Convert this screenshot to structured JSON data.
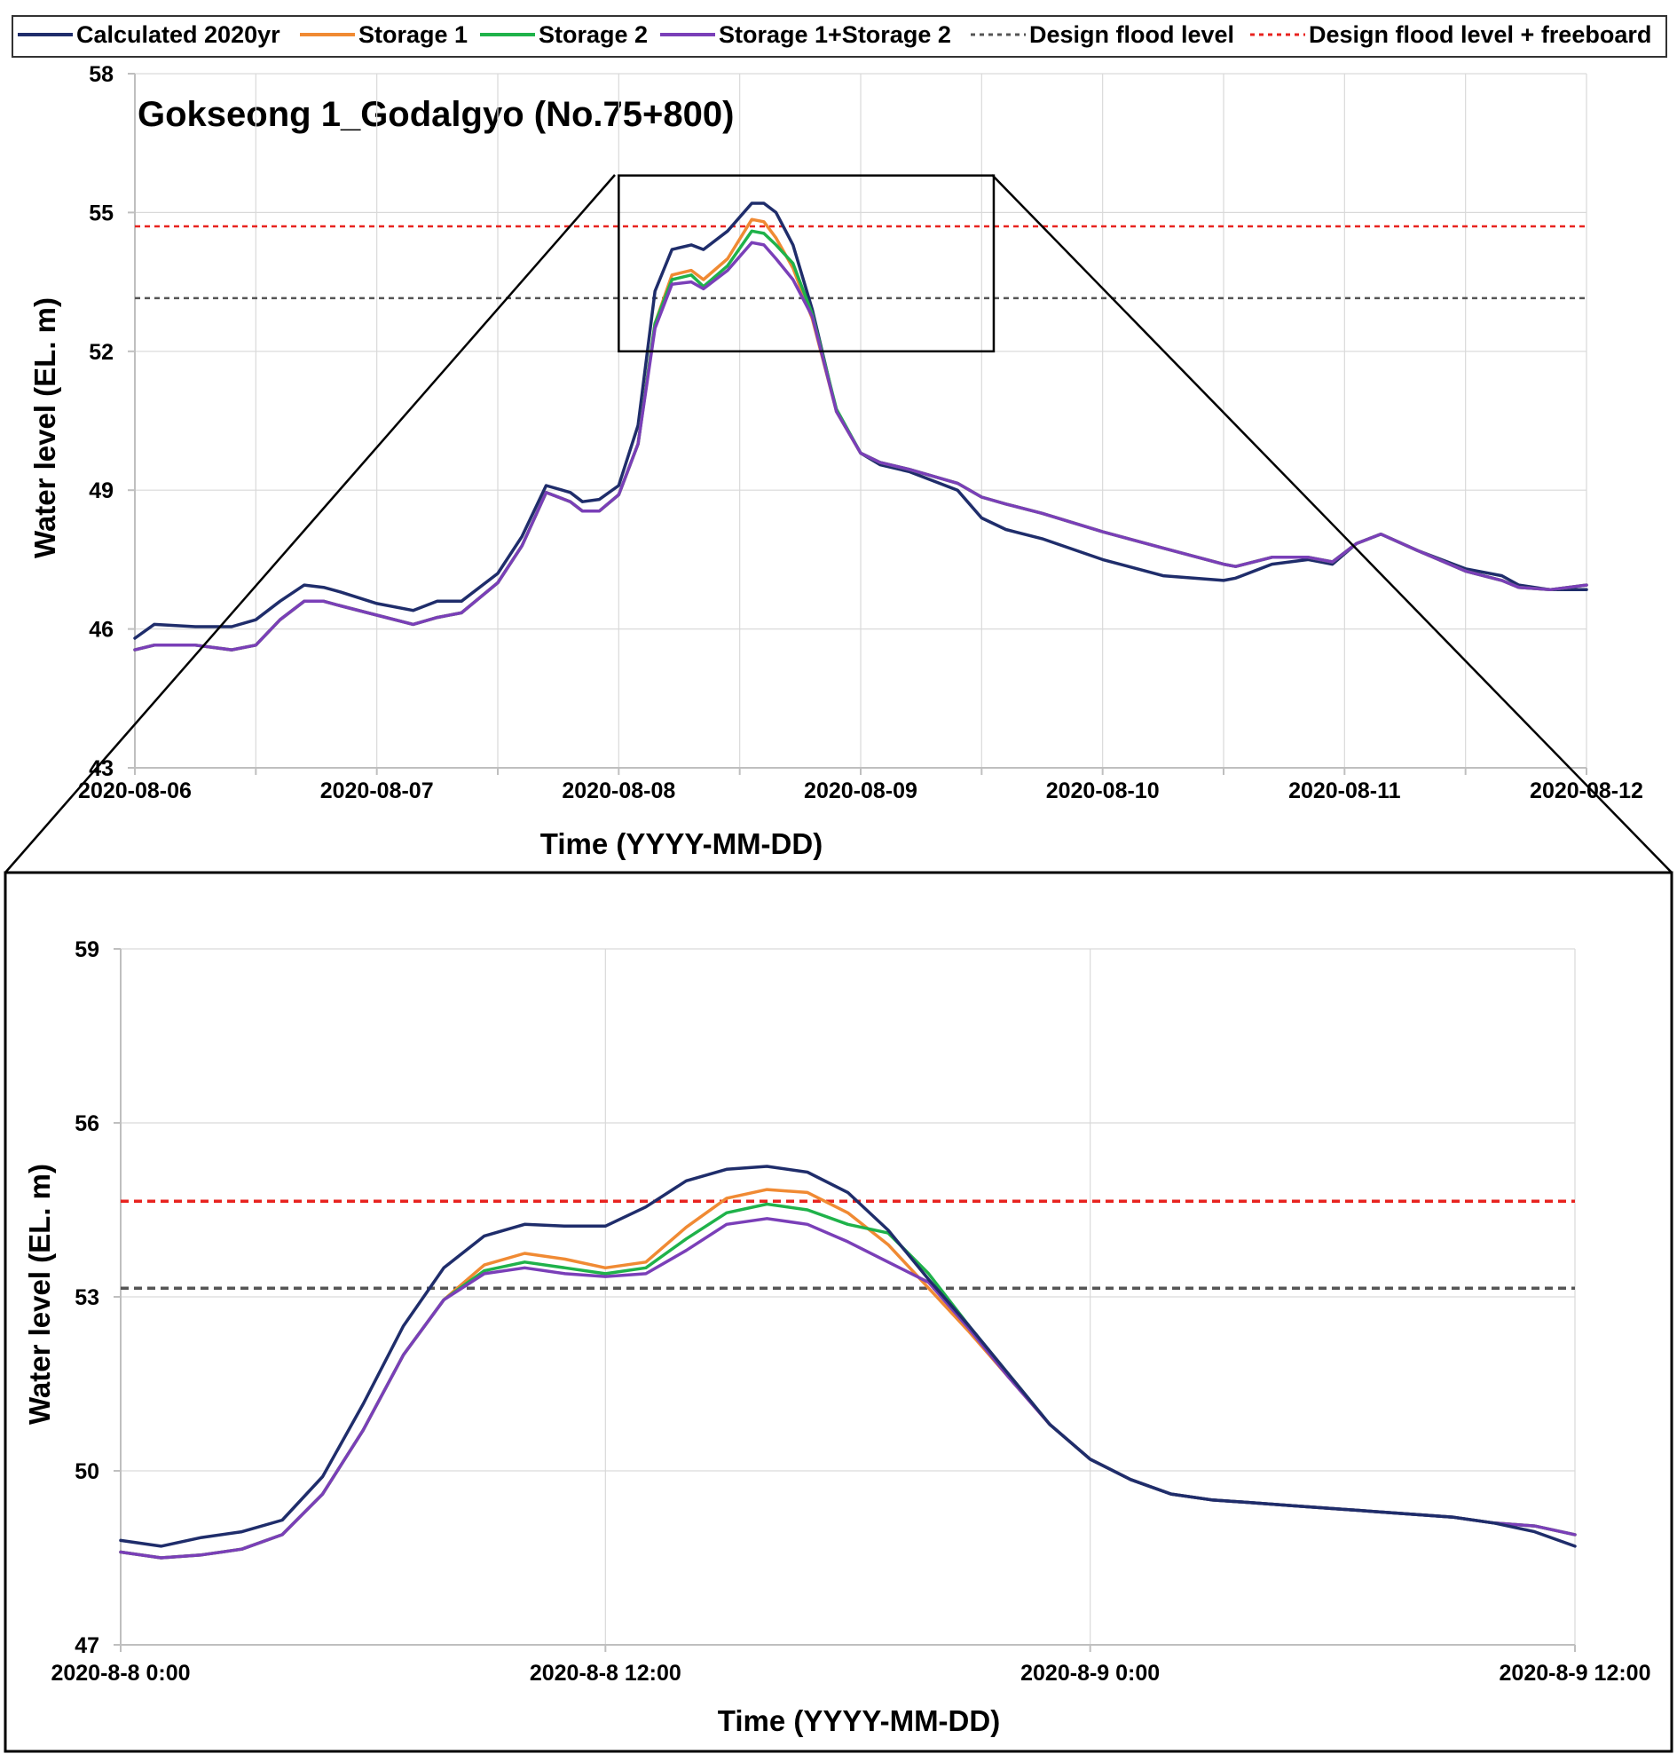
{
  "legend": [
    {
      "label": "Calculated 2020yr",
      "color": "#1f2d6b",
      "dashed": false
    },
    {
      "label": "Storage 1",
      "color": "#f08a33",
      "dashed": false
    },
    {
      "label": "Storage 2",
      "color": "#1fb24a",
      "dashed": false
    },
    {
      "label": "Storage 1+Storage 2",
      "color": "#7a3fb8",
      "dashed": false
    },
    {
      "label": "Design flood level",
      "color": "#555555",
      "dashed": true
    },
    {
      "label": "Design flood level + freeboard",
      "color": "#e8231f",
      "dashed": true
    }
  ],
  "chart_data": [
    {
      "type": "line",
      "title": "Gokseong 1_Godalgyo (No.75+800)",
      "xlabel": "Time (YYYY-MM-DD)",
      "ylabel": "Water level (EL. m)",
      "xlim": [
        0,
        6
      ],
      "ylim": [
        43,
        58
      ],
      "yticks": [
        43,
        46,
        49,
        52,
        55,
        58
      ],
      "x_ticks": [
        0,
        1,
        2,
        3,
        4,
        5,
        6
      ],
      "x_tick_labels": [
        "2020-08-06",
        "2020-08-07",
        "2020-08-08",
        "2020-08-09",
        "2020-08-10",
        "2020-08-11",
        "2020-08-12"
      ],
      "grid": true,
      "legend_position": "top",
      "reference_lines": [
        {
          "name": "Design flood level",
          "y": 53.15
        },
        {
          "name": "Design flood level + freeboard",
          "y": 54.7
        }
      ],
      "zoom_box": {
        "x": [
          2.0,
          3.55
        ],
        "y": [
          52.0,
          55.8
        ]
      },
      "series": [
        {
          "name": "Calculated 2020yr",
          "x": [
            0,
            0.08,
            0.25,
            0.4,
            0.5,
            0.6,
            0.7,
            0.78,
            0.85,
            1.0,
            1.15,
            1.25,
            1.35,
            1.5,
            1.6,
            1.7,
            1.8,
            1.85,
            1.92,
            2.0,
            2.08,
            2.15,
            2.22,
            2.3,
            2.35,
            2.45,
            2.55,
            2.6,
            2.65,
            2.72,
            2.8,
            2.9,
            3.0,
            3.08,
            3.2,
            3.4,
            3.5,
            3.6,
            3.75,
            4.0,
            4.25,
            4.5,
            4.55,
            4.7,
            4.85,
            4.95,
            5.05,
            5.15,
            5.3,
            5.5,
            5.65,
            5.72,
            5.85,
            6.0
          ],
          "values": [
            45.8,
            46.1,
            46.05,
            46.05,
            46.2,
            46.6,
            46.95,
            46.9,
            46.8,
            46.55,
            46.4,
            46.6,
            46.6,
            47.2,
            48.0,
            49.1,
            48.95,
            48.75,
            48.8,
            49.1,
            50.4,
            53.3,
            54.2,
            54.3,
            54.2,
            54.6,
            55.2,
            55.2,
            55.0,
            54.3,
            52.9,
            50.7,
            49.8,
            49.55,
            49.4,
            49.0,
            48.4,
            48.15,
            47.95,
            47.5,
            47.15,
            47.05,
            47.1,
            47.4,
            47.5,
            47.4,
            47.85,
            48.05,
            47.7,
            47.3,
            47.15,
            46.95,
            46.85,
            46.85
          ]
        },
        {
          "name": "Storage 1",
          "x": [
            0,
            0.08,
            0.25,
            0.4,
            0.5,
            0.6,
            0.7,
            0.78,
            0.85,
            1.0,
            1.15,
            1.25,
            1.35,
            1.5,
            1.6,
            1.7,
            1.8,
            1.85,
            1.92,
            2.0,
            2.08,
            2.15,
            2.22,
            2.3,
            2.35,
            2.45,
            2.55,
            2.6,
            2.65,
            2.72,
            2.8,
            2.9,
            3.0,
            3.08,
            3.2,
            3.4,
            3.5,
            3.6,
            3.75,
            4.0,
            4.25,
            4.5,
            4.55,
            4.7,
            4.85,
            4.95,
            5.05,
            5.15,
            5.3,
            5.5,
            5.65,
            5.72,
            5.85,
            6.0
          ],
          "values": [
            45.55,
            45.65,
            45.65,
            45.55,
            45.65,
            46.2,
            46.6,
            46.6,
            46.5,
            46.3,
            46.1,
            46.25,
            46.35,
            47.0,
            47.8,
            48.95,
            48.75,
            48.55,
            48.55,
            48.9,
            50.0,
            52.6,
            53.65,
            53.75,
            53.55,
            54.0,
            54.85,
            54.8,
            54.45,
            53.8,
            52.7,
            50.7,
            49.8,
            49.6,
            49.45,
            49.15,
            48.85,
            48.7,
            48.5,
            48.1,
            47.75,
            47.4,
            47.35,
            47.55,
            47.55,
            47.45,
            47.85,
            48.05,
            47.7,
            47.25,
            47.05,
            46.9,
            46.85,
            46.95
          ]
        },
        {
          "name": "Storage 2",
          "x": [
            0,
            0.08,
            0.25,
            0.4,
            0.5,
            0.6,
            0.7,
            0.78,
            0.85,
            1.0,
            1.15,
            1.25,
            1.35,
            1.5,
            1.6,
            1.7,
            1.8,
            1.85,
            1.92,
            2.0,
            2.08,
            2.15,
            2.22,
            2.3,
            2.35,
            2.45,
            2.55,
            2.6,
            2.65,
            2.72,
            2.8,
            2.9,
            3.0,
            3.08,
            3.2,
            3.4,
            3.5,
            3.6,
            3.75,
            4.0,
            4.25,
            4.5,
            4.55,
            4.7,
            4.85,
            4.95,
            5.05,
            5.15,
            5.3,
            5.5,
            5.65,
            5.72,
            5.85,
            6.0
          ],
          "values": [
            45.55,
            45.65,
            45.65,
            45.55,
            45.65,
            46.2,
            46.6,
            46.6,
            46.5,
            46.3,
            46.1,
            46.25,
            46.35,
            47.0,
            47.8,
            48.95,
            48.75,
            48.55,
            48.55,
            48.9,
            50.0,
            52.6,
            53.55,
            53.65,
            53.4,
            53.85,
            54.6,
            54.55,
            54.3,
            53.9,
            52.8,
            50.75,
            49.8,
            49.6,
            49.45,
            49.15,
            48.85,
            48.7,
            48.5,
            48.1,
            47.75,
            47.4,
            47.35,
            47.55,
            47.55,
            47.45,
            47.85,
            48.05,
            47.7,
            47.25,
            47.05,
            46.9,
            46.85,
            46.95
          ]
        },
        {
          "name": "Storage 1+Storage 2",
          "x": [
            0,
            0.08,
            0.25,
            0.4,
            0.5,
            0.6,
            0.7,
            0.78,
            0.85,
            1.0,
            1.15,
            1.25,
            1.35,
            1.5,
            1.6,
            1.7,
            1.8,
            1.85,
            1.92,
            2.0,
            2.08,
            2.15,
            2.22,
            2.3,
            2.35,
            2.45,
            2.55,
            2.6,
            2.65,
            2.72,
            2.8,
            2.9,
            3.0,
            3.08,
            3.2,
            3.4,
            3.5,
            3.6,
            3.75,
            4.0,
            4.25,
            4.5,
            4.55,
            4.7,
            4.85,
            4.95,
            5.05,
            5.15,
            5.3,
            5.5,
            5.65,
            5.72,
            5.85,
            6.0
          ],
          "values": [
            45.55,
            45.65,
            45.65,
            45.55,
            45.65,
            46.2,
            46.6,
            46.6,
            46.5,
            46.3,
            46.1,
            46.25,
            46.35,
            47.0,
            47.8,
            48.95,
            48.75,
            48.55,
            48.55,
            48.9,
            50.0,
            52.5,
            53.45,
            53.5,
            53.35,
            53.75,
            54.35,
            54.3,
            54.0,
            53.55,
            52.75,
            50.7,
            49.8,
            49.6,
            49.45,
            49.15,
            48.85,
            48.7,
            48.5,
            48.1,
            47.75,
            47.4,
            47.35,
            47.55,
            47.55,
            47.45,
            47.85,
            48.05,
            47.7,
            47.25,
            47.05,
            46.9,
            46.85,
            46.95
          ]
        }
      ]
    },
    {
      "type": "line",
      "title": "",
      "xlabel": "Time (YYYY-MM-DD)",
      "ylabel": "Water level (EL. m)",
      "xlim": [
        0,
        36
      ],
      "ylim": [
        47,
        59
      ],
      "yticks": [
        47,
        50,
        53,
        56,
        59
      ],
      "x_ticks": [
        0,
        12,
        24,
        36
      ],
      "x_tick_labels": [
        "2020-8-8 0:00",
        "2020-8-8 12:00",
        "2020-8-9 0:00",
        "2020-8-9 12:00"
      ],
      "grid": true,
      "reference_lines": [
        {
          "name": "Design flood level",
          "y": 53.15
        },
        {
          "name": "Design flood level + freeboard",
          "y": 54.65
        }
      ],
      "series": [
        {
          "name": "Calculated 2020yr",
          "x": [
            0,
            1,
            2,
            3,
            4,
            5,
            6,
            7,
            8,
            9,
            10,
            11,
            12,
            13,
            14,
            15,
            16,
            17,
            18,
            19,
            20,
            21,
            22,
            23,
            24,
            25,
            26,
            27,
            28,
            29,
            30,
            31,
            32,
            33,
            34,
            35,
            36
          ],
          "values": [
            48.8,
            48.7,
            48.85,
            48.95,
            49.15,
            49.9,
            51.15,
            52.5,
            53.5,
            54.05,
            54.25,
            54.22,
            54.22,
            54.55,
            55.0,
            55.2,
            55.25,
            55.15,
            54.8,
            54.15,
            53.3,
            52.5,
            51.65,
            50.8,
            50.2,
            49.85,
            49.6,
            49.5,
            49.45,
            49.4,
            49.35,
            49.3,
            49.25,
            49.2,
            49.1,
            48.95,
            48.7
          ]
        },
        {
          "name": "Storage 1",
          "x": [
            0,
            1,
            2,
            3,
            4,
            5,
            6,
            7,
            8,
            9,
            10,
            11,
            12,
            13,
            14,
            15,
            16,
            17,
            18,
            19,
            20,
            21,
            22,
            23,
            24,
            25,
            26,
            27,
            28,
            29,
            30,
            31,
            32,
            33,
            34,
            35,
            36
          ],
          "values": [
            48.6,
            48.5,
            48.55,
            48.65,
            48.9,
            49.6,
            50.7,
            52.0,
            52.95,
            53.55,
            53.75,
            53.65,
            53.5,
            53.6,
            54.2,
            54.7,
            54.85,
            54.8,
            54.45,
            53.9,
            53.15,
            52.4,
            51.6,
            50.8,
            50.2,
            49.85,
            49.6,
            49.5,
            49.45,
            49.4,
            49.35,
            49.3,
            49.25,
            49.2,
            49.1,
            49.05,
            48.9
          ]
        },
        {
          "name": "Storage 2",
          "x": [
            0,
            1,
            2,
            3,
            4,
            5,
            6,
            7,
            8,
            9,
            10,
            11,
            12,
            13,
            14,
            15,
            16,
            17,
            18,
            19,
            20,
            21,
            22,
            23,
            24,
            25,
            26,
            27,
            28,
            29,
            30,
            31,
            32,
            33,
            34,
            35,
            36
          ],
          "values": [
            48.6,
            48.5,
            48.55,
            48.65,
            48.9,
            49.6,
            50.7,
            52.0,
            52.95,
            53.45,
            53.6,
            53.5,
            53.4,
            53.5,
            54.0,
            54.45,
            54.6,
            54.5,
            54.25,
            54.1,
            53.4,
            52.5,
            51.65,
            50.8,
            50.2,
            49.85,
            49.6,
            49.5,
            49.45,
            49.4,
            49.35,
            49.3,
            49.25,
            49.2,
            49.1,
            49.05,
            48.9
          ]
        },
        {
          "name": "Storage 1+Storage 2",
          "x": [
            0,
            1,
            2,
            3,
            4,
            5,
            6,
            7,
            8,
            9,
            10,
            11,
            12,
            13,
            14,
            15,
            16,
            17,
            18,
            19,
            20,
            21,
            22,
            23,
            24,
            25,
            26,
            27,
            28,
            29,
            30,
            31,
            32,
            33,
            34,
            35,
            36
          ],
          "values": [
            48.6,
            48.5,
            48.55,
            48.65,
            48.9,
            49.6,
            50.7,
            52.0,
            52.95,
            53.4,
            53.5,
            53.4,
            53.35,
            53.4,
            53.8,
            54.25,
            54.35,
            54.25,
            53.95,
            53.6,
            53.25,
            52.45,
            51.6,
            50.8,
            50.2,
            49.85,
            49.6,
            49.5,
            49.45,
            49.4,
            49.35,
            49.3,
            49.25,
            49.2,
            49.1,
            49.05,
            48.9
          ]
        }
      ]
    }
  ]
}
